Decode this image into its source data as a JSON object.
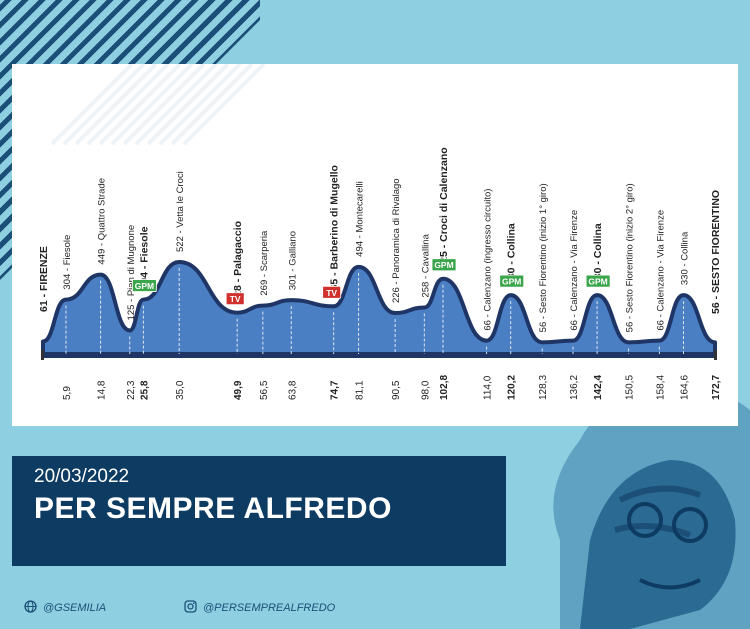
{
  "header": {
    "date": "20/03/2022",
    "title": "PER SEMPRE ALFREDO"
  },
  "footer": {
    "website": "@GSEMILIA",
    "instagram": "@PERSEMPREALFREDO"
  },
  "colors": {
    "background": "#8ecfe2",
    "navy": "#0d3b62",
    "profile_fill": "#4a7fc4",
    "profile_line": "#1f3566",
    "gpm": "#3aa54a",
    "tv": "#d0312d"
  },
  "chart_data": {
    "type": "area",
    "title": "",
    "xlabel": "",
    "ylabel": "",
    "points": [
      {
        "km": "0",
        "alt": 61,
        "label": "61 - FIRENZE",
        "bold": true
      },
      {
        "km": "5,9",
        "alt": 304,
        "label": "304 - Fiesole"
      },
      {
        "km": "14,8",
        "alt": 449,
        "label": "449 - Quattro Strade"
      },
      {
        "km": "22,3",
        "alt": 125,
        "label": "125 - Pian di Mugnone"
      },
      {
        "km": "25,8",
        "alt": 304,
        "label": "304 - Fiesole",
        "bold": true,
        "tag": "GPM"
      },
      {
        "km": "35,0",
        "alt": 522,
        "label": "522 - Vetta le Croci"
      },
      {
        "km": "49,9",
        "alt": 228,
        "label": "228 - Palagaccio",
        "bold": true,
        "tag": "TV"
      },
      {
        "km": "56,5",
        "alt": 269,
        "label": "269 - Scarperia"
      },
      {
        "km": "63,8",
        "alt": 301,
        "label": "301 - Galliano"
      },
      {
        "km": "74,7",
        "alt": 265,
        "label": "265 - Barberino di Mugello",
        "bold": true,
        "tag": "TV"
      },
      {
        "km": "81,1",
        "alt": 494,
        "label": "494 - Montecarelli"
      },
      {
        "km": "90,5",
        "alt": 226,
        "label": "226 - Panoramica di Rivalago"
      },
      {
        "km": "98,0",
        "alt": 258,
        "label": "258 - Cavallina"
      },
      {
        "km": "102,8",
        "alt": 425,
        "label": "425 - Croci di Calenzano",
        "bold": true,
        "tag": "GPM"
      },
      {
        "km": "114,0",
        "alt": 66,
        "label": "66 - Calenzano (ingresso circuito)"
      },
      {
        "km": "120,2",
        "alt": 330,
        "label": "330 - Collina",
        "bold": true,
        "tag": "GPM"
      },
      {
        "km": "128,3",
        "alt": 56,
        "label": "56 - Sesto Fiorentino (inizio 1° giro)"
      },
      {
        "km": "136,2",
        "alt": 66,
        "label": "66 - Calenzano - Via Firenze"
      },
      {
        "km": "142,4",
        "alt": 330,
        "label": "330 - Collina",
        "bold": true,
        "tag": "GPM"
      },
      {
        "km": "150,5",
        "alt": 56,
        "label": "56 - Sesto Fiorentino (inizio 2° giro)"
      },
      {
        "km": "158,4",
        "alt": 66,
        "label": "66 - Calenzano - Via Firenze"
      },
      {
        "km": "164,6",
        "alt": 330,
        "label": "330 - Collina"
      },
      {
        "km": "172,7",
        "alt": 56,
        "label": "56 - SESTO FIORENTINO",
        "bold": true
      }
    ],
    "km_max": 172.7,
    "alt_max": 522
  }
}
